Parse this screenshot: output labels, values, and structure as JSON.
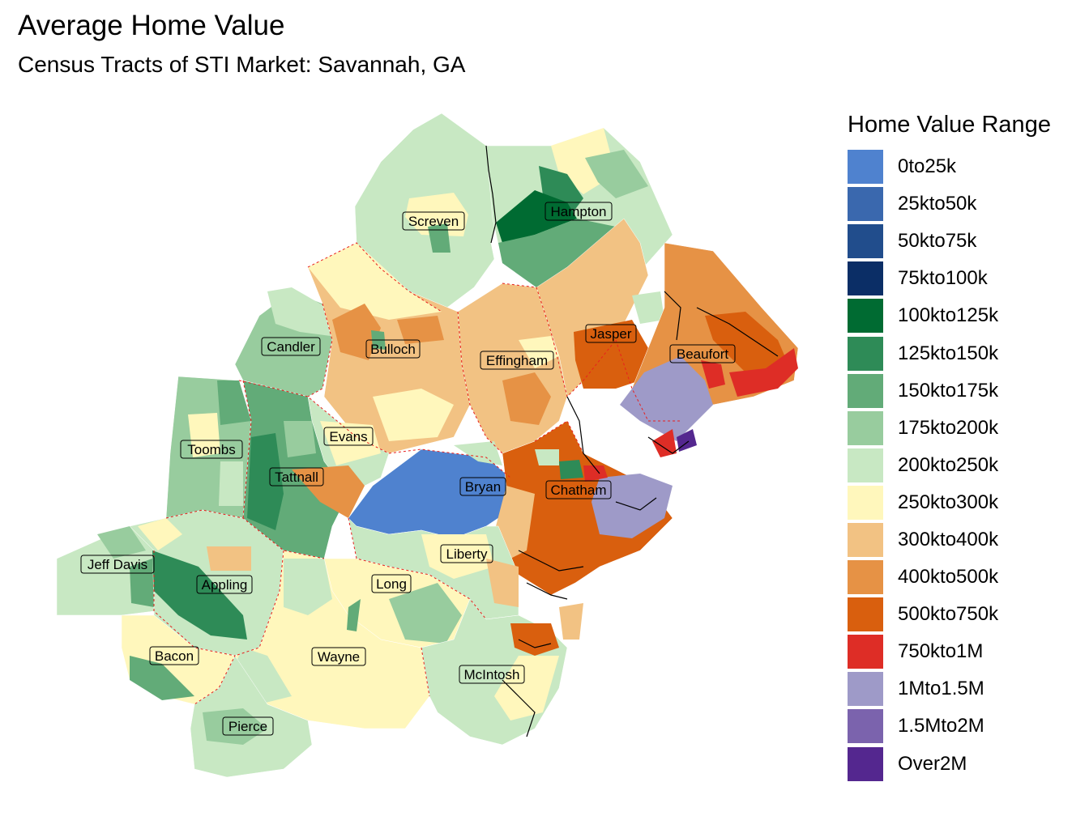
{
  "title": "Average Home Value",
  "subtitle": "Census Tracts of STI Market: Savannah, GA",
  "legend": {
    "title": "Home Value Range",
    "items": [
      {
        "label": "0to25k",
        "color": "#4f82cf"
      },
      {
        "label": "25kto50k",
        "color": "#3a68ae"
      },
      {
        "label": "50kto75k",
        "color": "#214d8c"
      },
      {
        "label": "75kto100k",
        "color": "#0b2e66"
      },
      {
        "label": "100kto125k",
        "color": "#006b32"
      },
      {
        "label": "125kto150k",
        "color": "#2e8b57"
      },
      {
        "label": "150kto175k",
        "color": "#62ab78"
      },
      {
        "label": "175kto200k",
        "color": "#98cc9e"
      },
      {
        "label": "200kto250k",
        "color": "#c8e8c3"
      },
      {
        "label": "250kto300k",
        "color": "#fff7bc"
      },
      {
        "label": "300kto400k",
        "color": "#f2c283"
      },
      {
        "label": "400kto500k",
        "color": "#e69245"
      },
      {
        "label": "500kto750k",
        "color": "#d95f0e"
      },
      {
        "label": "750kto1M",
        "color": "#de2d26"
      },
      {
        "label": "1Mto1.5M",
        "color": "#9e9ac8"
      },
      {
        "label": "1.5Mto2M",
        "color": "#7b63ad"
      },
      {
        "label": "Over2M",
        "color": "#54278f"
      }
    ]
  },
  "counties": [
    {
      "name": "Screven"
    },
    {
      "name": "Hampton"
    },
    {
      "name": "Candler"
    },
    {
      "name": "Bulloch"
    },
    {
      "name": "Effingham"
    },
    {
      "name": "Jasper"
    },
    {
      "name": "Beaufort"
    },
    {
      "name": "Toombs"
    },
    {
      "name": "Evans"
    },
    {
      "name": "Tattnall"
    },
    {
      "name": "Bryan"
    },
    {
      "name": "Chatham"
    },
    {
      "name": "Jeff Davis"
    },
    {
      "name": "Appling"
    },
    {
      "name": "Liberty"
    },
    {
      "name": "Long"
    },
    {
      "name": "Bacon"
    },
    {
      "name": "Wayne"
    },
    {
      "name": "McIntosh"
    },
    {
      "name": "Pierce"
    }
  ]
}
